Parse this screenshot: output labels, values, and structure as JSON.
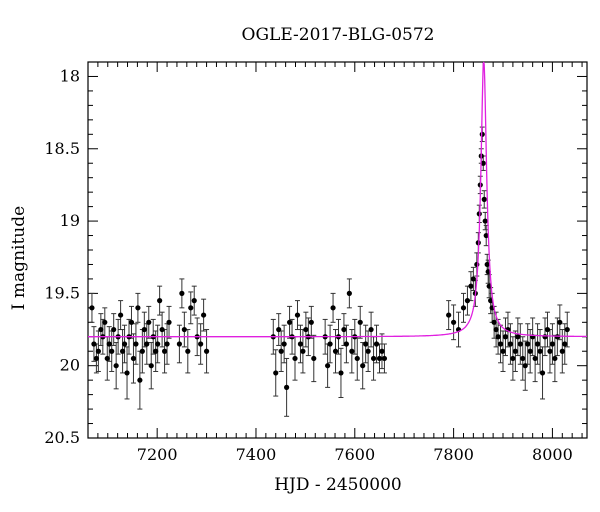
{
  "chart_data": {
    "type": "scatter",
    "title": "OGLE-2017-BLG-0572",
    "xlabel": "HJD - 2450000",
    "ylabel": "I magnitude",
    "xlim": [
      7060,
      8070
    ],
    "ylim": [
      20.5,
      17.9
    ],
    "y_inverted": true,
    "x_ticks": [
      7200,
      7400,
      7600,
      7800,
      8000
    ],
    "y_ticks": [
      18,
      18.5,
      19,
      19.5,
      20,
      20.5
    ],
    "y_tick_labels": [
      "18",
      "18.5",
      "19",
      "19.5",
      "20",
      "20.5"
    ],
    "grid": false,
    "colors": {
      "points": "#000000",
      "model": "#e020e0",
      "axes": "#000000"
    },
    "model_baseline": 19.8,
    "model_peak_t0": 7861,
    "model_peak_mag": 17.88,
    "series": [
      {
        "type": "scatter_with_errorbars",
        "x": [
          7068,
          7072,
          7077,
          7081,
          7086,
          7090,
          7094,
          7099,
          7103,
          7108,
          7112,
          7117,
          7121,
          7126,
          7130,
          7134,
          7139,
          7143,
          7148,
          7152,
          7157,
          7161,
          7165,
          7170,
          7174,
          7179,
          7183,
          7188,
          7192,
          7197,
          7201,
          7205,
          7210,
          7215,
          7220,
          7224,
          7245,
          7250,
          7255,
          7262,
          7268,
          7275,
          7281,
          7288,
          7294,
          7300,
          7435,
          7440,
          7446,
          7451,
          7457,
          7462,
          7468,
          7473,
          7479,
          7484,
          7490,
          7495,
          7501,
          7506,
          7512,
          7517,
          7540,
          7545,
          7550,
          7556,
          7561,
          7567,
          7572,
          7578,
          7583,
          7589,
          7594,
          7600,
          7605,
          7611,
          7616,
          7622,
          7627,
          7633,
          7638,
          7644,
          7650,
          7655,
          7660,
          7790,
          7800,
          7810,
          7820,
          7828,
          7835,
          7840,
          7844,
          7847,
          7850,
          7852,
          7854,
          7856,
          7858,
          7860,
          7862,
          7864,
          7866,
          7868,
          7870,
          7872,
          7875,
          7878,
          7882,
          7886,
          7890,
          7895,
          7900,
          7905,
          7910,
          7915,
          7920,
          7925,
          7930,
          7935,
          7940,
          7945,
          7950,
          7955,
          7960,
          7965,
          7970,
          7975,
          7980,
          7985,
          7990,
          7995,
          8000,
          8005,
          8010,
          8015,
          8020,
          8025,
          8030
        ],
        "y": [
          19.6,
          19.85,
          19.95,
          19.9,
          19.75,
          19.8,
          19.7,
          19.95,
          19.85,
          19.9,
          19.75,
          20.0,
          19.8,
          19.65,
          19.9,
          19.85,
          20.05,
          19.8,
          19.7,
          19.95,
          19.85,
          19.6,
          20.1,
          19.9,
          19.75,
          19.85,
          19.7,
          20.0,
          19.8,
          19.9,
          19.85,
          19.55,
          19.75,
          19.9,
          19.85,
          19.7,
          19.85,
          19.5,
          19.75,
          19.9,
          19.6,
          19.55,
          19.8,
          19.85,
          19.65,
          19.9,
          19.8,
          20.05,
          19.75,
          19.9,
          19.85,
          20.15,
          19.7,
          19.8,
          19.95,
          19.65,
          19.85,
          19.9,
          19.75,
          19.8,
          19.7,
          19.95,
          19.8,
          20.0,
          19.85,
          19.6,
          19.9,
          19.8,
          20.05,
          19.75,
          19.85,
          19.5,
          19.9,
          19.8,
          19.95,
          19.7,
          20.0,
          19.85,
          19.9,
          19.75,
          19.95,
          19.85,
          19.95,
          19.9,
          19.95,
          19.65,
          19.7,
          19.75,
          19.6,
          19.55,
          19.45,
          19.4,
          19.5,
          19.3,
          19.15,
          18.95,
          18.75,
          18.55,
          18.4,
          18.6,
          18.85,
          19.0,
          19.1,
          19.3,
          19.35,
          19.45,
          19.55,
          19.6,
          19.7,
          19.75,
          19.8,
          19.85,
          19.9,
          19.8,
          19.75,
          19.85,
          19.95,
          19.9,
          19.8,
          19.85,
          19.95,
          20.0,
          19.85,
          19.9,
          19.8,
          19.95,
          19.85,
          19.9,
          20.05,
          19.8,
          19.75,
          19.9,
          19.85,
          19.95,
          19.8,
          19.7,
          19.9,
          19.85,
          19.75
        ],
        "yerr": [
          0.1,
          0.12,
          0.1,
          0.14,
          0.11,
          0.12,
          0.1,
          0.15,
          0.12,
          0.14,
          0.11,
          0.16,
          0.12,
          0.1,
          0.15,
          0.13,
          0.18,
          0.12,
          0.11,
          0.17,
          0.14,
          0.1,
          0.2,
          0.15,
          0.12,
          0.14,
          0.11,
          0.16,
          0.12,
          0.14,
          0.13,
          0.1,
          0.12,
          0.15,
          0.14,
          0.11,
          0.13,
          0.1,
          0.12,
          0.15,
          0.11,
          0.1,
          0.13,
          0.14,
          0.11,
          0.15,
          0.12,
          0.16,
          0.11,
          0.14,
          0.13,
          0.2,
          0.11,
          0.12,
          0.15,
          0.1,
          0.13,
          0.15,
          0.12,
          0.13,
          0.11,
          0.16,
          0.12,
          0.15,
          0.13,
          0.1,
          0.15,
          0.12,
          0.17,
          0.11,
          0.13,
          0.1,
          0.15,
          0.12,
          0.15,
          0.11,
          0.16,
          0.13,
          0.14,
          0.12,
          0.15,
          0.13,
          0.1,
          0.12,
          0.1,
          0.1,
          0.12,
          0.12,
          0.1,
          0.1,
          0.1,
          0.08,
          0.09,
          0.08,
          0.07,
          0.06,
          0.06,
          0.05,
          0.05,
          0.05,
          0.06,
          0.06,
          0.07,
          0.07,
          0.08,
          0.08,
          0.09,
          0.1,
          0.11,
          0.12,
          0.12,
          0.13,
          0.14,
          0.13,
          0.12,
          0.14,
          0.15,
          0.14,
          0.13,
          0.14,
          0.15,
          0.17,
          0.14,
          0.15,
          0.13,
          0.16,
          0.14,
          0.15,
          0.18,
          0.13,
          0.12,
          0.15,
          0.14,
          0.16,
          0.13,
          0.12,
          0.15,
          0.14,
          0.12
        ]
      }
    ]
  }
}
